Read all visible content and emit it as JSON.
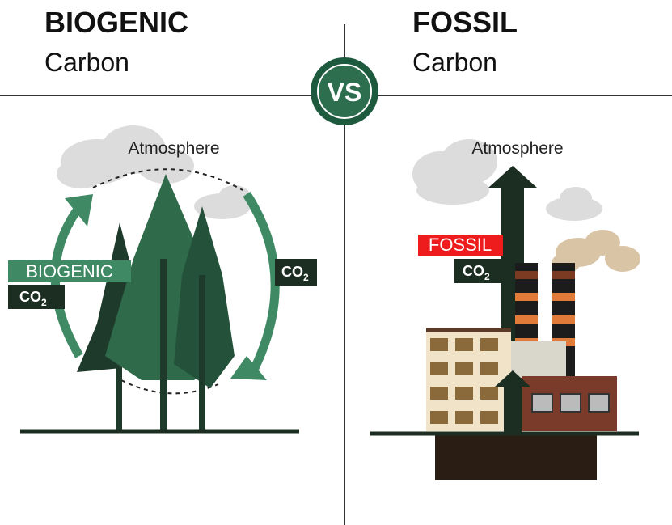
{
  "header": {
    "left": {
      "title": "BIOGENIC",
      "subtitle": "Carbon"
    },
    "right": {
      "title": "FOSSIL",
      "subtitle": "Carbon"
    },
    "divider": "VS"
  },
  "biogenic": {
    "atmosphere": "Atmosphere",
    "source_label": "BIOGENIC",
    "emission": {
      "chem": "CO",
      "sub": "2"
    },
    "uptake": {
      "chem": "CO",
      "sub": "2"
    }
  },
  "fossil": {
    "atmosphere": "Atmosphere",
    "source_label": "FOSSIL",
    "emission": {
      "chem": "CO",
      "sub": "2"
    }
  }
}
